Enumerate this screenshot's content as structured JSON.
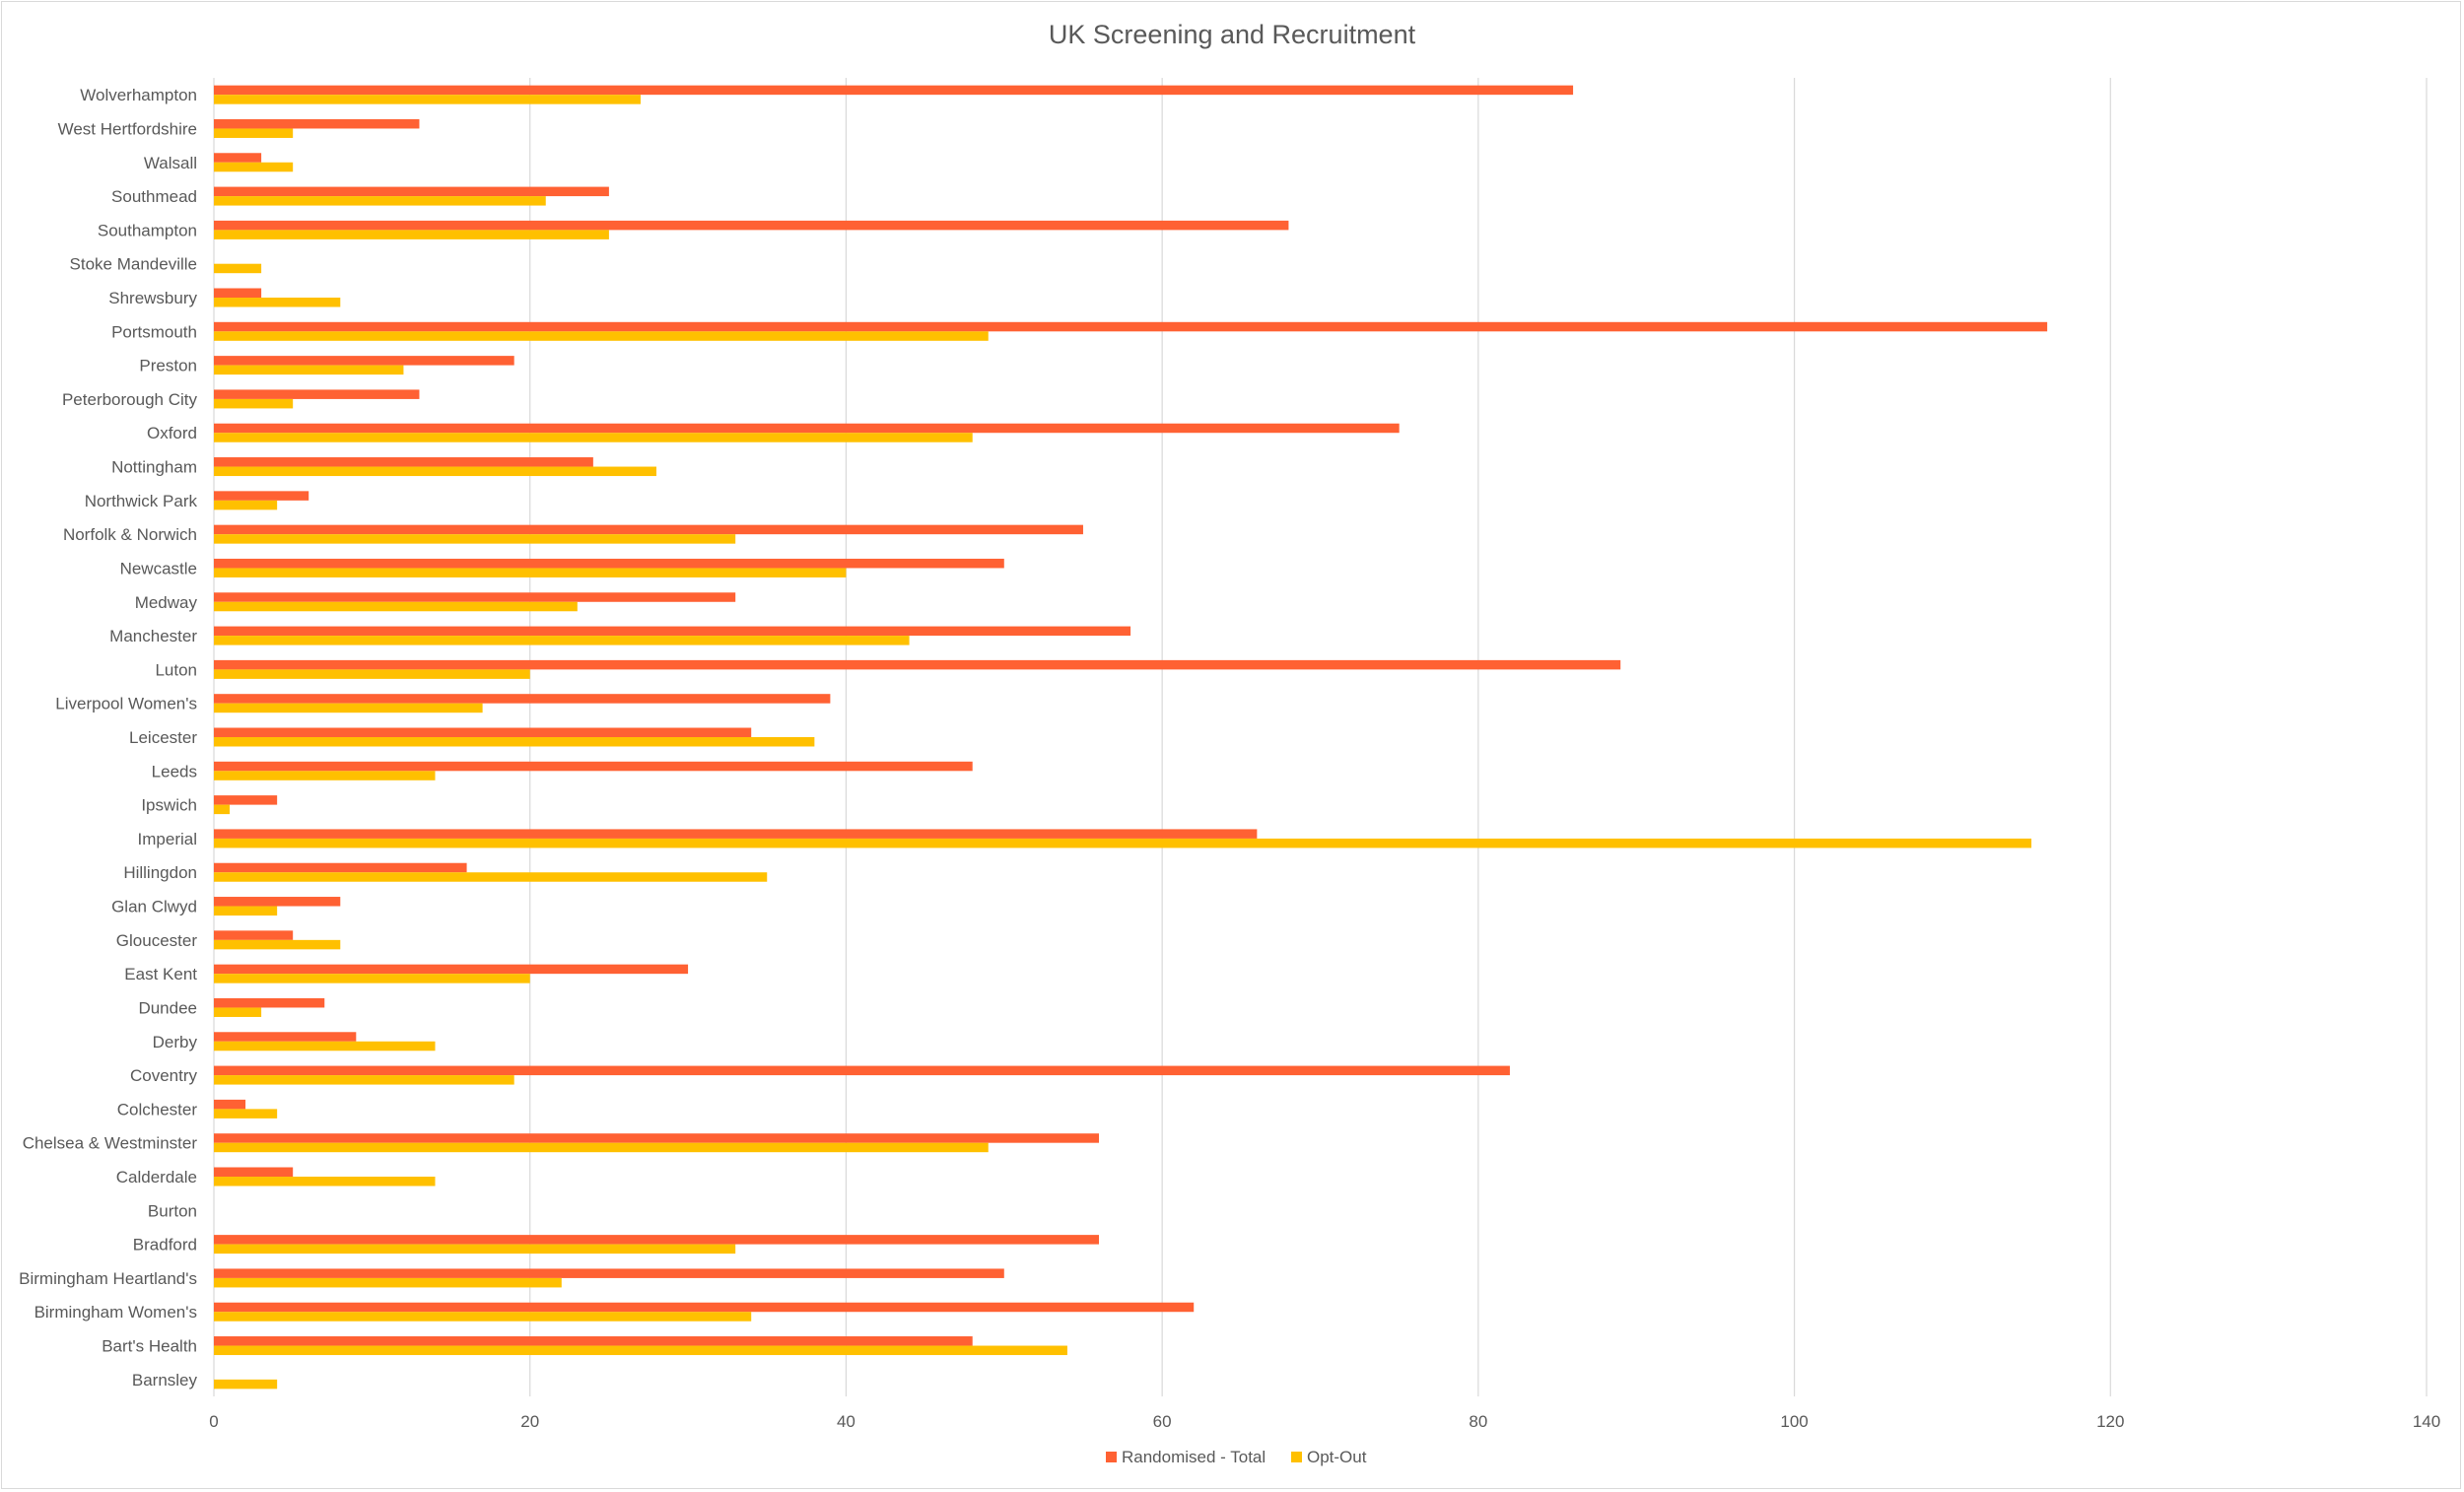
{
  "chart_data": {
    "type": "bar",
    "orientation": "horizontal",
    "title": "UK Screening and Recruitment",
    "xlabel": "",
    "ylabel": "",
    "xlim": [
      0,
      140
    ],
    "xticks": [
      0,
      20,
      40,
      60,
      80,
      100,
      120,
      140
    ],
    "grid": "vertical",
    "legend_position": "bottom",
    "categories": [
      "Wolverhampton",
      "West Hertfordshire",
      "Walsall",
      "Southmead",
      "Southampton",
      "Stoke Mandeville",
      "Shrewsbury",
      "Portsmouth",
      "Preston",
      "Peterborough City",
      "Oxford",
      "Nottingham",
      "Northwick Park",
      "Norfolk & Norwich",
      "Newcastle",
      "Medway",
      "Manchester",
      "Luton",
      "Liverpool Women's",
      "Leicester",
      "Leeds",
      "Ipswich",
      "Imperial",
      "Hillingdon",
      "Glan Clwyd",
      "Gloucester",
      "East Kent",
      "Dundee",
      "Derby",
      "Coventry",
      "Colchester",
      "Chelsea & Westminster",
      "Calderdale",
      "Burton",
      "Bradford",
      "Birmingham Heartland's",
      "Birmingham Women's",
      "Bart's Health",
      "Barnsley"
    ],
    "series": [
      {
        "name": "Randomised - Total",
        "color": "#ff6133",
        "values": [
          86,
          13,
          3,
          25,
          68,
          0,
          3,
          116,
          19,
          13,
          75,
          24,
          6,
          55,
          50,
          33,
          58,
          89,
          39,
          34,
          48,
          4,
          66,
          16,
          8,
          5,
          30,
          7,
          9,
          82,
          2,
          56,
          5,
          0,
          56,
          50,
          62,
          48,
          0
        ]
      },
      {
        "name": "Opt-Out",
        "color": "#ffc000",
        "values": [
          27,
          5,
          5,
          21,
          25,
          3,
          8,
          49,
          12,
          5,
          48,
          28,
          4,
          33,
          40,
          23,
          44,
          20,
          17,
          38,
          14,
          1,
          115,
          35,
          4,
          8,
          20,
          3,
          14,
          19,
          4,
          49,
          14,
          0,
          33,
          22,
          34,
          54,
          4
        ]
      }
    ]
  }
}
